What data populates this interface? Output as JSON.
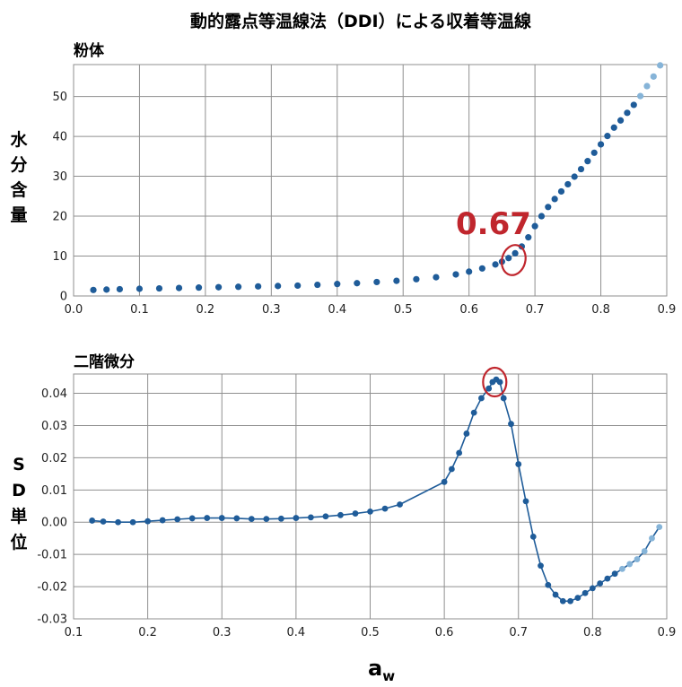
{
  "title": "動的露点等温線法（DDI）による収着等温線",
  "xlabel_main": "a",
  "xlabel_sub": "w",
  "colors": {
    "point": "#1f5c99",
    "point_light": "#86b4d8",
    "highlight": "#c0262d",
    "grid": "#8f8f8f"
  },
  "chart_data": [
    {
      "type": "scatter",
      "subtitle": "粉体",
      "ylabel": "水分含量",
      "xlim": [
        0.0,
        0.9
      ],
      "ylim": [
        0,
        58
      ],
      "xticks": [
        0.0,
        0.1,
        0.2,
        0.3,
        0.4,
        0.5,
        0.6,
        0.7,
        0.8,
        0.9
      ],
      "xtick_labels": [
        "0.0",
        "0.1",
        "0.2",
        "0.3",
        "0.4",
        "0.5",
        "0.6",
        "0.7",
        "0.8",
        "0.9"
      ],
      "yticks": [
        0,
        10,
        20,
        30,
        40,
        50
      ],
      "ytick_labels": [
        "0",
        "10",
        "20",
        "30",
        "40",
        "50"
      ],
      "grid": true,
      "annotation": {
        "text": "0.67",
        "x": 0.665,
        "y": 9
      },
      "x": [
        0.03,
        0.05,
        0.07,
        0.1,
        0.13,
        0.16,
        0.19,
        0.22,
        0.25,
        0.28,
        0.31,
        0.34,
        0.37,
        0.4,
        0.43,
        0.46,
        0.49,
        0.52,
        0.55,
        0.58,
        0.6,
        0.62,
        0.64,
        0.65,
        0.66,
        0.67,
        0.68,
        0.69,
        0.7,
        0.71,
        0.72,
        0.73,
        0.74,
        0.75,
        0.76,
        0.77,
        0.78,
        0.79,
        0.8,
        0.81,
        0.82,
        0.83,
        0.84,
        0.85,
        0.86,
        0.87,
        0.88,
        0.89
      ],
      "y": [
        1.5,
        1.6,
        1.7,
        1.8,
        1.9,
        2.0,
        2.1,
        2.2,
        2.3,
        2.4,
        2.5,
        2.6,
        2.8,
        3.0,
        3.2,
        3.5,
        3.8,
        4.2,
        4.7,
        5.4,
        6.1,
        6.9,
        7.9,
        8.6,
        9.5,
        10.7,
        12.4,
        14.7,
        17.5,
        20.0,
        22.3,
        24.3,
        26.2,
        28.0,
        29.9,
        31.8,
        33.8,
        35.9,
        38.0,
        40.1,
        42.2,
        44.0,
        45.9,
        47.9,
        50.1,
        52.6,
        55.0,
        57.8
      ]
    },
    {
      "type": "line",
      "subtitle": "二階微分",
      "ylabel": "SD単位",
      "xlim": [
        0.1,
        0.9
      ],
      "ylim": [
        -0.03,
        0.046
      ],
      "xticks": [
        0.1,
        0.2,
        0.3,
        0.4,
        0.5,
        0.6,
        0.7,
        0.8,
        0.9
      ],
      "xtick_labels": [
        "0.1",
        "0.2",
        "0.3",
        "0.4",
        "0.5",
        "0.6",
        "0.7",
        "0.8",
        "0.9"
      ],
      "yticks": [
        -0.03,
        -0.02,
        -0.01,
        0.0,
        0.01,
        0.02,
        0.03,
        0.04
      ],
      "ytick_labels": [
        "-0.03",
        "-0.02",
        "-0.01",
        "0.00",
        "0.01",
        "0.02",
        "0.03",
        "0.04"
      ],
      "grid": true,
      "highlight_point": {
        "x": 0.668,
        "y": 0.0435
      },
      "x": [
        0.125,
        0.14,
        0.16,
        0.18,
        0.2,
        0.22,
        0.24,
        0.26,
        0.28,
        0.3,
        0.32,
        0.34,
        0.36,
        0.38,
        0.4,
        0.42,
        0.44,
        0.46,
        0.48,
        0.5,
        0.52,
        0.54,
        0.6,
        0.61,
        0.62,
        0.63,
        0.64,
        0.65,
        0.66,
        0.665,
        0.67,
        0.675,
        0.68,
        0.69,
        0.7,
        0.71,
        0.72,
        0.73,
        0.74,
        0.75,
        0.76,
        0.77,
        0.78,
        0.79,
        0.8,
        0.81,
        0.82,
        0.83,
        0.84,
        0.85,
        0.86,
        0.87,
        0.88,
        0.89
      ],
      "y": [
        0.0005,
        0.0002,
        0.0,
        0.0,
        0.0003,
        0.0006,
        0.0009,
        0.0012,
        0.0013,
        0.0013,
        0.0012,
        0.001,
        0.001,
        0.0011,
        0.0013,
        0.0015,
        0.0018,
        0.0022,
        0.0027,
        0.0033,
        0.0042,
        0.0055,
        0.0125,
        0.0165,
        0.0215,
        0.0275,
        0.034,
        0.0385,
        0.0415,
        0.0435,
        0.0443,
        0.0435,
        0.0385,
        0.0305,
        0.018,
        0.0065,
        -0.0045,
        -0.0135,
        -0.0195,
        -0.0225,
        -0.0245,
        -0.0245,
        -0.0235,
        -0.022,
        -0.0205,
        -0.019,
        -0.0175,
        -0.016,
        -0.0145,
        -0.013,
        -0.0115,
        -0.009,
        -0.005,
        -0.0015
      ]
    }
  ]
}
